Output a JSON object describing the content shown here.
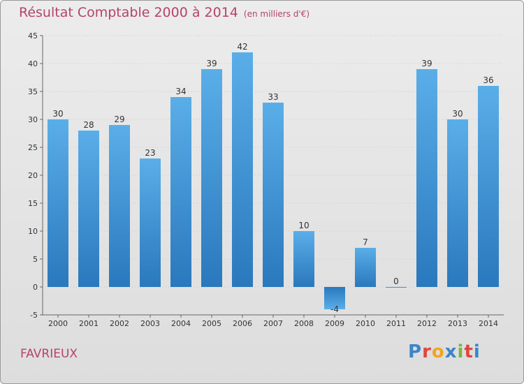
{
  "header": {
    "title": "Résultat Comptable 2000 à 2014",
    "unit": "(en milliers d'€)"
  },
  "footer": {
    "commune": "FAVRIEUX",
    "brand_letters": [
      "P",
      "r",
      "o",
      "x",
      "i",
      "t",
      "i"
    ],
    "brand_colors": [
      "#3a86c8",
      "#e0463c",
      "#f2a51f",
      "#3a86c8",
      "#7cb342",
      "#e0463c",
      "#3a86c8"
    ]
  },
  "colors": {
    "title": "#b5436b",
    "bar_top": "#5aaee8",
    "bar_bottom": "#2a78bd"
  },
  "chart_data": {
    "type": "bar",
    "title": "Résultat Comptable 2000 à 2014",
    "subtitle": "(en milliers d'€)",
    "xlabel": "",
    "ylabel": "",
    "categories": [
      "2000",
      "2001",
      "2002",
      "2003",
      "2004",
      "2005",
      "2006",
      "2007",
      "2008",
      "2009",
      "2010",
      "2011",
      "2012",
      "2013",
      "2014"
    ],
    "values": [
      30,
      28,
      29,
      23,
      34,
      39,
      42,
      33,
      10,
      -4,
      7,
      0,
      39,
      30,
      36
    ],
    "value_labels": [
      "30",
      "28",
      "29",
      "23",
      "34",
      "39",
      "42",
      "33",
      "10",
      "-4",
      "7",
      "0",
      "39",
      "30",
      "36"
    ],
    "ylim": [
      -5,
      45
    ],
    "yticks": [
      -5,
      0,
      5,
      10,
      15,
      20,
      25,
      30,
      35,
      40,
      45
    ],
    "grid": true,
    "legend": "none"
  }
}
